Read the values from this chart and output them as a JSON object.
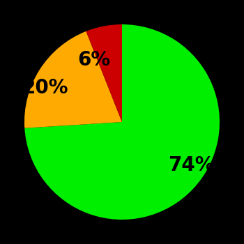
{
  "slices": [
    74,
    20,
    6
  ],
  "labels": [
    "74%",
    "20%",
    "6%"
  ],
  "colors": [
    "#00ee00",
    "#ffaa00",
    "#cc0000"
  ],
  "startangle": 90,
  "counterclock": false,
  "background_color": "#000000",
  "label_fontsize": 20,
  "label_fontweight": "bold",
  "labeldistance": 0.65,
  "figsize": [
    3.5,
    3.5
  ],
  "dpi": 100
}
